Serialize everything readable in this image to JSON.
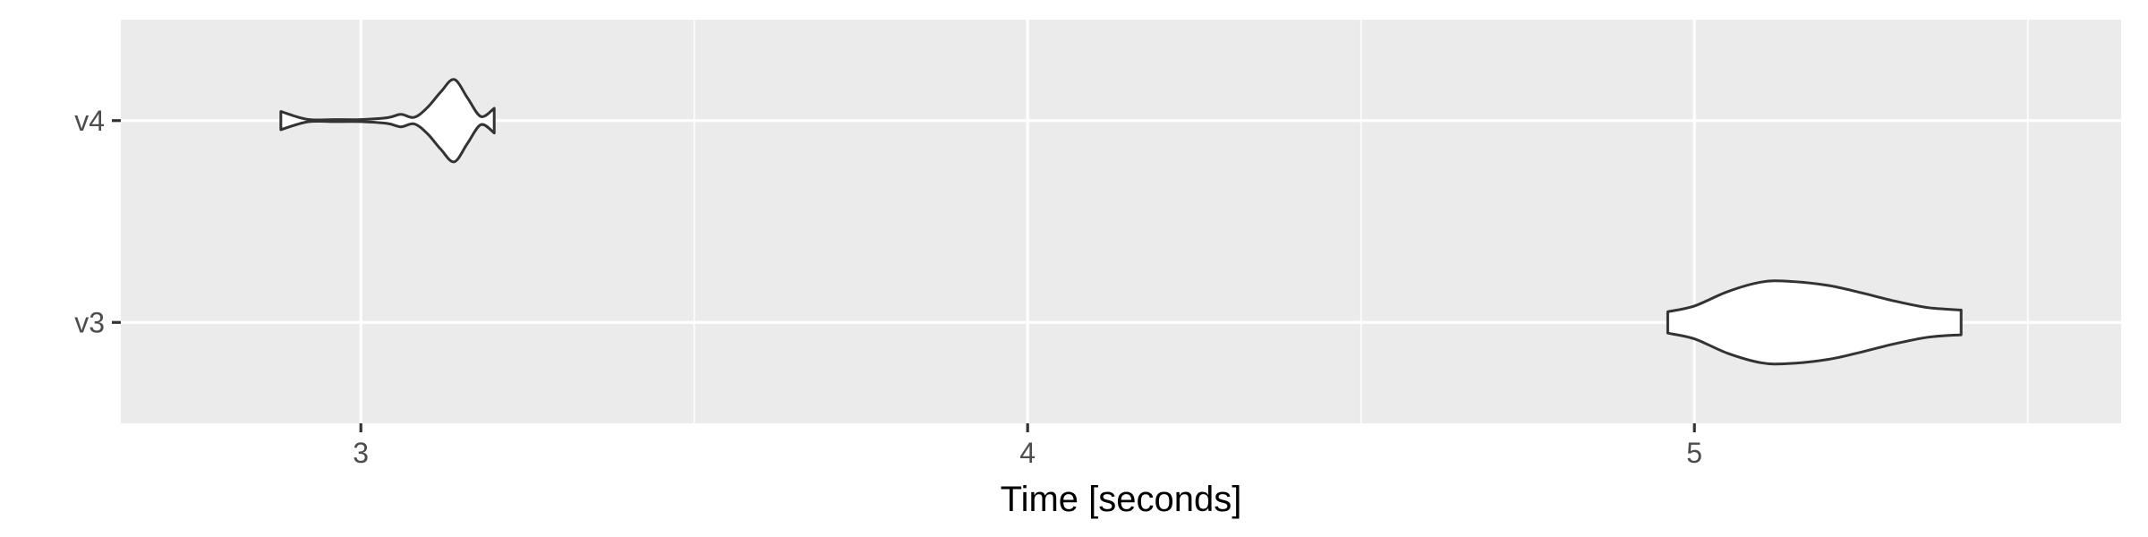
{
  "chart_data": {
    "type": "violin",
    "orientation": "horizontal",
    "title": "",
    "xlabel": "Time [seconds]",
    "ylabel": "",
    "xlim": [
      2.64,
      5.64
    ],
    "x_ticks": [
      3,
      4,
      5
    ],
    "x_tick_labels": [
      "3",
      "4",
      "5"
    ],
    "categories": [
      "v3",
      "v4"
    ],
    "grid": true,
    "legend": "none",
    "series": [
      {
        "category": "v4",
        "min": 2.88,
        "max": 3.2,
        "density_x": [
          2.88,
          2.92,
          2.96,
          3.0,
          3.04,
          3.06,
          3.08,
          3.1,
          3.12,
          3.14,
          3.16,
          3.18,
          3.2
        ],
        "density_width": [
          0.22,
          0.03,
          0.0,
          0.0,
          0.07,
          0.15,
          0.08,
          0.32,
          0.7,
          1.0,
          0.55,
          0.1,
          0.3
        ]
      },
      {
        "category": "v3",
        "min": 4.96,
        "max": 5.4,
        "density_x": [
          4.96,
          5.0,
          5.05,
          5.1,
          5.14,
          5.2,
          5.25,
          5.3,
          5.35,
          5.4
        ],
        "density_width": [
          0.26,
          0.4,
          0.75,
          0.98,
          1.0,
          0.9,
          0.72,
          0.52,
          0.36,
          0.3
        ]
      }
    ],
    "colors": {
      "panel": "#ebebeb",
      "grid": "#ffffff",
      "violin_fill": "#ffffff",
      "violin_stroke": "#333333",
      "tick": "#333333",
      "tick_text": "#4d4d4d",
      "title_text": "#000000"
    }
  }
}
